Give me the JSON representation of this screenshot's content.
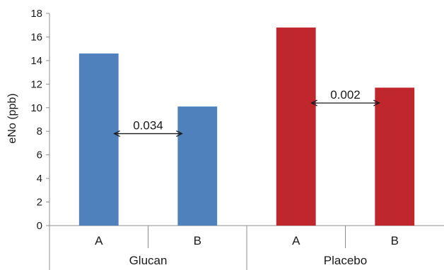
{
  "chart_data": {
    "type": "bar",
    "ylabel": "eNo (ppb)",
    "ylim": [
      0,
      18
    ],
    "yticks": [
      0,
      2,
      4,
      6,
      8,
      10,
      12,
      14,
      16,
      18
    ],
    "grid": false,
    "groups": [
      {
        "label": "Glucan",
        "color": "#4f81bd",
        "bars": [
          {
            "label": "A",
            "value": 14.6
          },
          {
            "label": "B",
            "value": 10.1
          }
        ],
        "annotation": {
          "text": "0.034",
          "y": 7.8
        }
      },
      {
        "label": "Placebo",
        "color": "#c0272d",
        "bars": [
          {
            "label": "A",
            "value": 16.8
          },
          {
            "label": "B",
            "value": 11.7
          }
        ],
        "annotation": {
          "text": "0.002",
          "y": 10.4
        }
      }
    ]
  }
}
